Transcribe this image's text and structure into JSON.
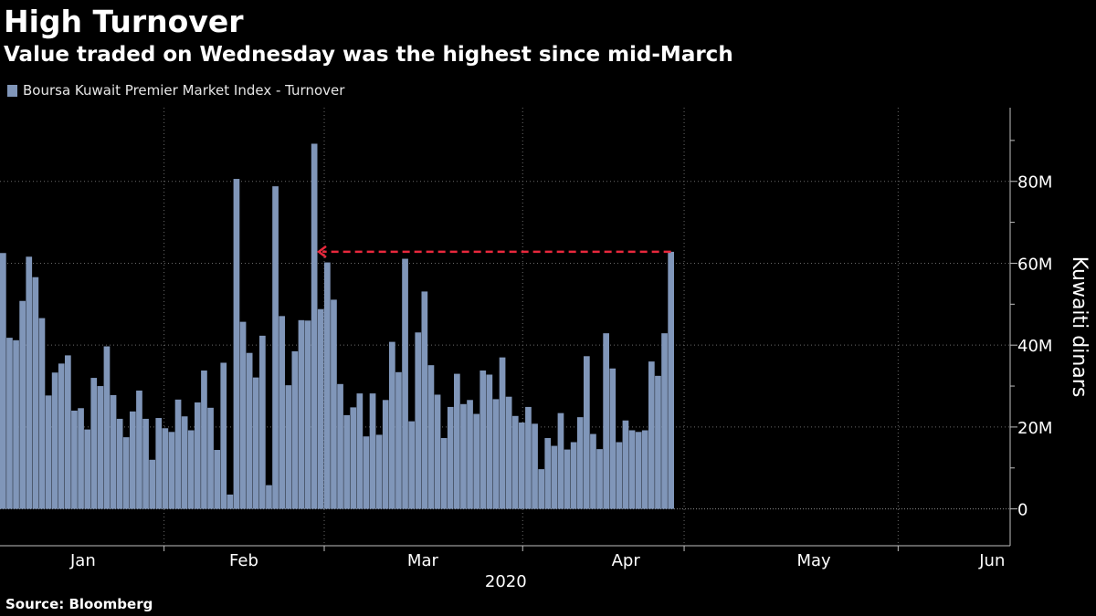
{
  "header": {
    "title": "High Turnover",
    "subtitle": "Value traded on Wednesday was the highest since mid-March"
  },
  "footer": {
    "source": "Source: Bloomberg"
  },
  "chart_data": {
    "type": "bar",
    "legend": "Boursa Kuwait Premier Market Index - Turnover",
    "legend_placement": "top-left",
    "series_color": "#8096b9",
    "annotation_color": "#e8283c",
    "grid": true,
    "ylabel": "Kuwaiti dinars",
    "year_label": "2020",
    "y_ticks": [
      0,
      20000000,
      40000000,
      60000000,
      80000000
    ],
    "y_tick_labels": [
      "0",
      "20M",
      "40M",
      "60M",
      "80M"
    ],
    "ylim": [
      -9000000,
      98000000
    ],
    "x_month_labels": [
      "Jan",
      "Feb",
      "Mar",
      "Apr",
      "May",
      "Jun"
    ],
    "values": [
      62.5,
      41.8,
      41.2,
      50.8,
      61.6,
      56.6,
      46.6,
      27.7,
      33.3,
      35.5,
      37.5,
      24.0,
      24.6,
      19.4,
      32.0,
      30.0,
      39.7,
      27.8,
      22.0,
      17.5,
      23.8,
      28.9,
      22.0,
      12.0,
      22.2,
      19.7,
      18.8,
      26.7,
      22.6,
      19.2,
      26.0,
      33.8,
      24.7,
      14.4,
      35.7,
      3.5,
      80.6,
      45.7,
      38.1,
      32.1,
      42.3,
      5.8,
      78.8,
      47.1,
      30.2,
      38.5,
      46.1,
      46.0,
      89.2,
      48.8,
      60.2,
      51.1,
      30.5,
      22.9,
      24.8,
      28.2,
      17.7,
      28.2,
      18.1,
      26.6,
      40.8,
      33.4,
      61.1,
      21.4,
      43.1,
      53.1,
      35.1,
      27.9,
      17.3,
      24.9,
      33.0,
      25.6,
      26.6,
      23.2,
      33.8,
      32.8,
      26.8,
      37.0,
      27.4,
      22.7,
      21.1,
      24.9,
      20.8,
      9.7,
      17.3,
      15.4,
      23.4,
      14.5,
      16.3,
      22.4,
      37.3,
      18.3,
      14.6,
      42.9,
      34.3,
      16.3,
      21.6,
      19.2,
      18.8,
      19.2,
      36.0,
      32.5,
      42.9,
      62.8
    ],
    "values_unit": "millions of Kuwaiti dinars",
    "annotation": {
      "type": "dashed-arrow",
      "level": 62.8,
      "from_bar_index": 103,
      "to_bar_index": 50
    }
  }
}
